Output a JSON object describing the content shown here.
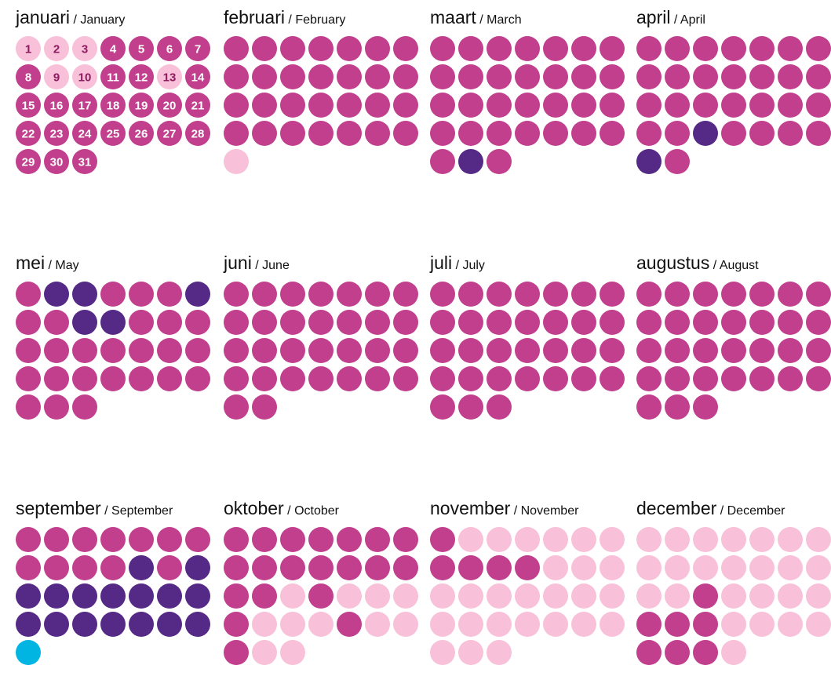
{
  "colors": {
    "m": "#c13f8d",
    "d": "#552a86",
    "l": "#f8c1d9",
    "c": "#00b5e2"
  },
  "number_colors": {
    "m": "#ffffff",
    "l": "#8c1b60"
  },
  "separator": " / ",
  "months": [
    {
      "nl": "januari",
      "en": "January",
      "days": "lllmmmmmllmmlmmmmmmmmmmmmmmmmmm",
      "numbers": [
        1,
        2,
        3,
        4,
        5,
        6,
        7,
        8,
        9,
        10,
        11,
        12,
        13,
        14,
        15,
        16,
        17,
        18,
        19,
        20,
        21,
        22,
        23,
        24,
        25,
        26,
        27,
        28,
        29,
        30,
        31
      ]
    },
    {
      "nl": "februari",
      "en": "February",
      "days": "mmmmmmmmmmmmmmmmmmmmmmmmmmmml"
    },
    {
      "nl": "maart",
      "en": "March",
      "days": "mmmmmmmmmmmmmmmmmmmmmmmmmmmmmdm"
    },
    {
      "nl": "april",
      "en": "April",
      "days": "mmmmmmmmmmmmmmmmmmmmmmmdmmmmdm"
    },
    {
      "nl": "mei",
      "en": "May",
      "days": "mddmmmdmmddmmmmmmmmmmmmmmmmmmmm"
    },
    {
      "nl": "juni",
      "en": "June",
      "days": "mmmmmmmmmmmmmmmmmmmmmmmmmmmmmm"
    },
    {
      "nl": "juli",
      "en": "July",
      "days": "mmmmmmmmmmmmmmmmmmmmmmmmmmmmmmm"
    },
    {
      "nl": "augustus",
      "en": "August",
      "days": "mmmmmmmmmmmmmmmmmmmmmmmmmmmmmmm"
    },
    {
      "nl": "september",
      "en": "September",
      "days": "mmmmmmmmmmmdmdddddddddddddddc"
    },
    {
      "nl": "oktober",
      "en": "October",
      "days": "mmmmmmmmmmmmmmmmlmlllmlllmllmll"
    },
    {
      "nl": "november",
      "en": "November",
      "days": "mllllllmmmmllllllllllllllllllll"
    },
    {
      "nl": "december",
      "en": "December",
      "days": "llllllllllllllllmllllmmmllllmmml"
    }
  ]
}
